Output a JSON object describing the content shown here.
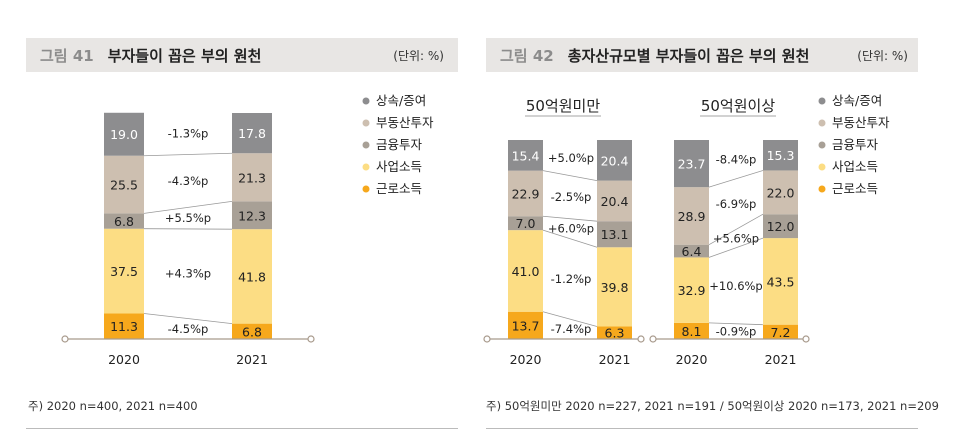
{
  "colors": {
    "상속/증여": "#8d8d8f",
    "부동산투자": "#cdbfb0",
    "금융투자": "#a8a096",
    "사업소득": "#fcdd84",
    "근로소득": "#f6a81c",
    "header_bg": "#e8e6e4",
    "axis": "#a89a8c"
  },
  "legend_entries": [
    "상속/증여",
    "부동산투자",
    "금융투자",
    "사업소득",
    "근로소득"
  ],
  "fig41": {
    "label": "그림 41",
    "title": "부자들이 꼽은 부의 원천",
    "unit": "(단위: %)",
    "note": "주) 2020 n=400, 2021 n=400"
  },
  "fig42": {
    "label": "그림 42",
    "title": "총자산규모별 부자들이 꼽은 부의 원천",
    "unit": "(단위: %)",
    "note": "주) 50억원미만 2020 n=227, 2021 n=191 / 50억원이상 2020 n=173, 2021 n=209"
  },
  "chart_data": [
    {
      "type": "bar",
      "stacked": true,
      "percent": true,
      "title": "",
      "categories": [
        "2020",
        "2021"
      ],
      "series": [
        {
          "name": "근로소득",
          "values": [
            11.3,
            6.8
          ]
        },
        {
          "name": "사업소득",
          "values": [
            37.5,
            41.8
          ]
        },
        {
          "name": "금융투자",
          "values": [
            6.8,
            12.3
          ]
        },
        {
          "name": "부동산투자",
          "values": [
            25.5,
            21.3
          ]
        },
        {
          "name": "상속/증여",
          "values": [
            19.0,
            17.8
          ]
        }
      ],
      "changes": [
        "-4.5%p",
        "+4.3%p",
        "+5.5%p",
        "-4.3%p",
        "-1.3%p"
      ],
      "legend": "right"
    },
    {
      "type": "bar",
      "stacked": true,
      "percent": true,
      "title": "50억원미만",
      "categories": [
        "2020",
        "2021"
      ],
      "series": [
        {
          "name": "근로소득",
          "values": [
            13.7,
            6.3
          ]
        },
        {
          "name": "사업소득",
          "values": [
            41.0,
            39.8
          ]
        },
        {
          "name": "금융투자",
          "values": [
            7.0,
            13.1
          ]
        },
        {
          "name": "부동산투자",
          "values": [
            22.9,
            20.4
          ]
        },
        {
          "name": "상속/증여",
          "values": [
            15.4,
            20.4
          ]
        }
      ],
      "changes": [
        "-7.4%p",
        "-1.2%p",
        "+6.0%p",
        "-2.5%p",
        "+5.0%p"
      ]
    },
    {
      "type": "bar",
      "stacked": true,
      "percent": true,
      "title": "50억원이상",
      "categories": [
        "2020",
        "2021"
      ],
      "series": [
        {
          "name": "근로소득",
          "values": [
            8.1,
            7.2
          ]
        },
        {
          "name": "사업소득",
          "values": [
            32.9,
            43.5
          ]
        },
        {
          "name": "금융투자",
          "values": [
            6.4,
            12.0
          ]
        },
        {
          "name": "부동산투자",
          "values": [
            28.9,
            22.0
          ]
        },
        {
          "name": "상속/증여",
          "values": [
            23.7,
            15.3
          ]
        }
      ],
      "changes": [
        "-0.9%p",
        "+10.6%p",
        "+5.6%p",
        "-6.9%p",
        "-8.4%p"
      ],
      "legend": "right"
    }
  ]
}
